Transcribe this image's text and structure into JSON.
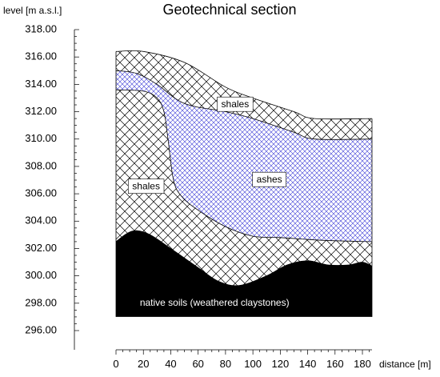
{
  "chart_data": {
    "type": "area",
    "title": "Geotechnical section",
    "xlabel": "distance [m]",
    "ylabel": "level [m a.s.l.]",
    "xlim": [
      0,
      187
    ],
    "ylim": [
      296,
      318
    ],
    "x_ticks": [
      "0",
      "20",
      "40",
      "60",
      "80",
      "100",
      "120",
      "140",
      "160",
      "180"
    ],
    "y_ticks": [
      "296.00",
      "298.00",
      "300.00",
      "302.00",
      "304.00",
      "306.00",
      "308.00",
      "310.00",
      "312.00",
      "314.00",
      "316.00",
      "318.00"
    ],
    "section": {
      "x_range": [
        0,
        187
      ],
      "bottom_level": 297.0
    },
    "boundaries": {
      "ground_surface": [
        [
          0,
          316.4
        ],
        [
          20,
          316.4
        ],
        [
          50,
          315.6
        ],
        [
          80,
          313.8
        ],
        [
          100,
          313.0
        ],
        [
          130,
          312.0
        ],
        [
          145,
          311.5
        ],
        [
          187,
          311.5
        ]
      ],
      "ashes_top": [
        [
          0,
          315.0
        ],
        [
          15,
          314.8
        ],
        [
          30,
          314.0
        ],
        [
          50,
          312.6
        ],
        [
          80,
          312.0
        ],
        [
          100,
          311.5
        ],
        [
          130,
          310.5
        ],
        [
          145,
          310.0
        ],
        [
          187,
          310.0
        ]
      ],
      "ashes_bottom": [
        [
          0,
          313.6
        ],
        [
          20,
          313.5
        ],
        [
          30,
          313.0
        ],
        [
          35,
          312.0
        ],
        [
          38,
          310.0
        ],
        [
          42,
          307.0
        ],
        [
          48,
          305.8
        ],
        [
          60,
          304.8
        ],
        [
          80,
          303.6
        ],
        [
          100,
          302.9
        ],
        [
          120,
          302.8
        ],
        [
          150,
          302.6
        ],
        [
          187,
          302.5
        ]
      ],
      "claystone_top": [
        [
          0,
          302.5
        ],
        [
          8,
          303.1
        ],
        [
          15,
          303.3
        ],
        [
          25,
          303.0
        ],
        [
          40,
          302.0
        ],
        [
          60,
          300.6
        ],
        [
          75,
          299.6
        ],
        [
          90,
          299.3
        ],
        [
          110,
          300.0
        ],
        [
          125,
          300.8
        ],
        [
          140,
          301.1
        ],
        [
          155,
          300.8
        ],
        [
          170,
          300.8
        ],
        [
          180,
          301.0
        ],
        [
          187,
          300.7
        ]
      ]
    },
    "layers": [
      {
        "name": "shales",
        "pattern": "crosshatch-black",
        "between": [
          "ground_surface",
          "ashes_top"
        ]
      },
      {
        "name": "ashes",
        "pattern": "crosshatch-blue",
        "between": [
          "ashes_top",
          "ashes_bottom"
        ]
      },
      {
        "name": "shales",
        "pattern": "crosshatch-black",
        "between": [
          "ashes_bottom",
          "claystone_top"
        ]
      },
      {
        "name": "native soils (weathered claystones)",
        "pattern": "solid-black",
        "between": [
          "claystone_top",
          "bottom"
        ]
      }
    ],
    "annotations": [
      {
        "text": "shales",
        "x": 87,
        "y": 312.5
      },
      {
        "text": "ashes",
        "x": 112,
        "y": 307.0
      },
      {
        "text": "shales",
        "x": 22,
        "y": 306.5
      },
      {
        "text": "native soils (weathered claystones)",
        "x": 72,
        "y": 298.0,
        "inverted": true
      }
    ],
    "colors": {
      "shale_hatch": "#000000",
      "ash_hatch": "#3b3bd6",
      "claystone_fill": "#000000",
      "background": "#ffffff"
    },
    "grid": false
  }
}
